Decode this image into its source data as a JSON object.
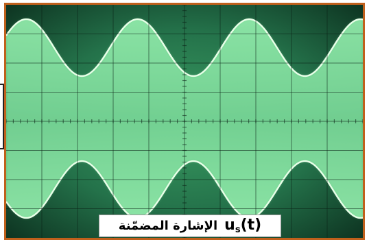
{
  "caption": {
    "label": "الإشارة المضمّنة",
    "formula_main": "u",
    "formula_sub": "s",
    "formula_arg": "(t)"
  },
  "colors": {
    "frame": "#c0601c",
    "screen_dark": "#0f3a25",
    "screen_mid": "#2f8a55",
    "trace": "#9dffb8",
    "envelope_edge": "#e8ffe8",
    "graticule": "#0a1f14"
  },
  "waveform": {
    "type": "amplitude-modulated",
    "envelope_cycles_visible": 3.2
  }
}
